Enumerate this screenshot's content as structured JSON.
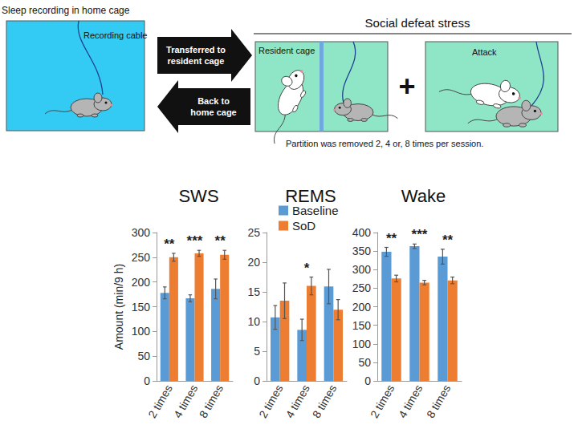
{
  "diagram": {
    "home_cage": {
      "title": "Sleep recording in home cage",
      "cable_label": "Recording cable"
    },
    "arrows": [
      {
        "lines": [
          "Transferred to",
          "resident cage"
        ]
      },
      {
        "lines": [
          "Back to",
          "home cage"
        ]
      }
    ],
    "stress": {
      "title": "Social defeat stress",
      "resident_label": "Resident cage",
      "plus": "+",
      "attack_label": "Attack",
      "note": "Partition was removed 2, 4 or, 8 times per session."
    }
  },
  "chart_data": [
    {
      "type": "bar",
      "title": "SWS",
      "ylabel": "Amount (min/9 h)",
      "categories": [
        "2 times",
        "4 times",
        "8 times"
      ],
      "series": [
        {
          "name": "Baseline",
          "color": "#5b9bd5",
          "values": [
            178,
            167,
            186
          ],
          "errors": [
            12,
            7,
            20
          ]
        },
        {
          "name": "SoD",
          "color": "#ed7d31",
          "values": [
            250,
            258,
            255
          ],
          "errors": [
            8,
            6,
            9
          ]
        }
      ],
      "annotations": [
        {
          "category": "2 times",
          "text": "**"
        },
        {
          "category": "4 times",
          "text": "***"
        },
        {
          "category": "8 times",
          "text": "**"
        }
      ],
      "ylim": [
        0,
        300
      ],
      "yticks": [
        0,
        50,
        100,
        150,
        200,
        250,
        300
      ],
      "grid": false
    },
    {
      "type": "bar",
      "title": "REMS",
      "categories": [
        "2 times",
        "4 times",
        "8 times"
      ],
      "series": [
        {
          "name": "Baseline",
          "color": "#5b9bd5",
          "values": [
            10.7,
            8.6,
            15.9
          ],
          "errors": [
            2,
            1.8,
            2.9
          ]
        },
        {
          "name": "SoD",
          "color": "#ed7d31",
          "values": [
            13.5,
            16,
            12
          ],
          "errors": [
            3,
            1.5,
            1.7
          ]
        }
      ],
      "annotations": [
        {
          "category": "4 times",
          "text": "*"
        }
      ],
      "ylim": [
        0,
        25
      ],
      "yticks": [
        0,
        5,
        10,
        15,
        20,
        25
      ],
      "grid": false,
      "legend": "top"
    },
    {
      "type": "bar",
      "title": "Wake",
      "categories": [
        "2 times",
        "4 times",
        "8 times"
      ],
      "series": [
        {
          "name": "Baseline",
          "color": "#5b9bd5",
          "values": [
            348,
            363,
            335
          ],
          "errors": [
            12,
            6,
            20
          ]
        },
        {
          "name": "SoD",
          "color": "#ed7d31",
          "values": [
            276,
            265,
            271
          ],
          "errors": [
            9,
            6,
            9
          ]
        }
      ],
      "annotations": [
        {
          "category": "2 times",
          "text": "**"
        },
        {
          "category": "4 times",
          "text": "***"
        },
        {
          "category": "8 times",
          "text": "**"
        }
      ],
      "ylim": [
        0,
        400
      ],
      "yticks": [
        0,
        50,
        100,
        150,
        200,
        250,
        300,
        350,
        400
      ],
      "grid": false
    }
  ]
}
